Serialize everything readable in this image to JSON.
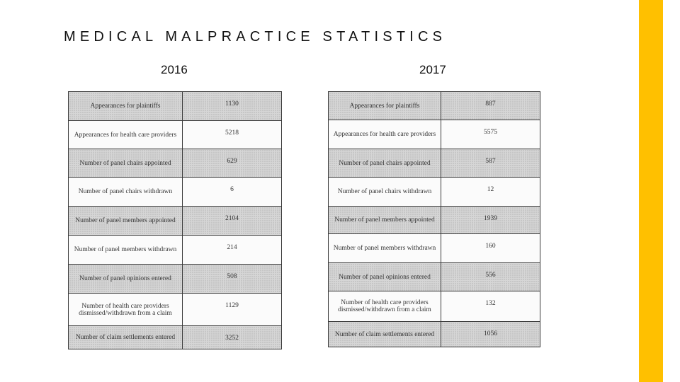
{
  "slide": {
    "title": "MEDICAL MALPRACTICE STATISTICS",
    "accent_color": "#FFC000"
  },
  "years": [
    "2016",
    "2017"
  ],
  "table_2016": [
    {
      "label": "Appearances for plaintiffs",
      "value": "1130",
      "shaded": true
    },
    {
      "label": "Appearances for health care providers",
      "value": "5218",
      "shaded": false
    },
    {
      "label": "Number of panel chairs appointed",
      "value": "629",
      "shaded": true
    },
    {
      "label": "Number of panel chairs withdrawn",
      "value": "6",
      "shaded": false
    },
    {
      "label": "Number of panel members appointed",
      "value": "2104",
      "shaded": true
    },
    {
      "label": "Number of panel members withdrawn",
      "value": "214",
      "shaded": false
    },
    {
      "label": "Number of panel opinions entered",
      "value": "508",
      "shaded": true
    },
    {
      "label": "Number of health care providers dismissed/withdrawn from a claim",
      "value": "1129",
      "shaded": false
    },
    {
      "label": "Number of claim settlements entered",
      "value": "3252",
      "shaded": true
    }
  ],
  "table_2017": [
    {
      "label": "Appearances for plaintiffs",
      "value": "887",
      "shaded": true
    },
    {
      "label": "Appearances for health care providers",
      "value": "5575",
      "shaded": false
    },
    {
      "label": "Number of panel chairs appointed",
      "value": "587",
      "shaded": true
    },
    {
      "label": "Number of panel chairs withdrawn",
      "value": "12",
      "shaded": false
    },
    {
      "label": "Number of panel members appointed",
      "value": "1939",
      "shaded": true
    },
    {
      "label": "Number of panel members withdrawn",
      "value": "160",
      "shaded": false
    },
    {
      "label": "Number of panel opinions entered",
      "value": "556",
      "shaded": true
    },
    {
      "label": "Number of health care providers dismissed/withdrawn from a claim",
      "value": "132",
      "shaded": false
    },
    {
      "label": "Number of claim settlements entered",
      "value": "1056",
      "shaded": true
    }
  ]
}
